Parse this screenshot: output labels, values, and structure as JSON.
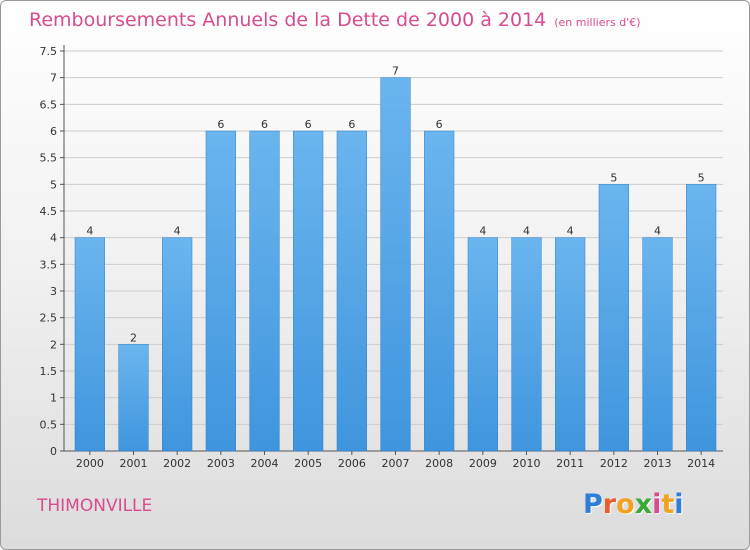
{
  "title": "Remboursements Annuels de la Dette de 2000 à 2014",
  "subtitle": "(en milliers d'€)",
  "location": "THIMONVILLE",
  "logo": {
    "letters": [
      "P",
      "r",
      "o",
      "x",
      "i",
      "t",
      "i"
    ],
    "colors": [
      "#2f7fd8",
      "#e8612c",
      "#f2a21e",
      "#3aaa35",
      "#d84b8f",
      "#f2a21e",
      "#2f7fd8"
    ]
  },
  "colors": {
    "bar": "#3f95dd",
    "bar_light": "#6bb5ef",
    "title": "#d84b8f",
    "grid": "#cccccc"
  },
  "chart_data": {
    "type": "bar",
    "categories": [
      "2000",
      "2001",
      "2002",
      "2003",
      "2004",
      "2005",
      "2006",
      "2007",
      "2008",
      "2009",
      "2010",
      "2011",
      "2012",
      "2013",
      "2014"
    ],
    "values": [
      4,
      2,
      4,
      6,
      6,
      6,
      6,
      7,
      6,
      4,
      4,
      4,
      5,
      4,
      5
    ],
    "ylim": [
      0,
      7.5
    ],
    "yticks": [
      "0",
      "0.5",
      "1",
      "1.5",
      "2",
      "2.5",
      "3",
      "3.5",
      "4",
      "4.5",
      "5",
      "5.5",
      "6",
      "6.5",
      "7",
      "7.5"
    ],
    "grid": true,
    "data_labels": [
      "4",
      "2",
      "4",
      "6",
      "6",
      "6",
      "6",
      "7",
      "6",
      "4",
      "4",
      "4",
      "5",
      "4",
      "5"
    ]
  }
}
